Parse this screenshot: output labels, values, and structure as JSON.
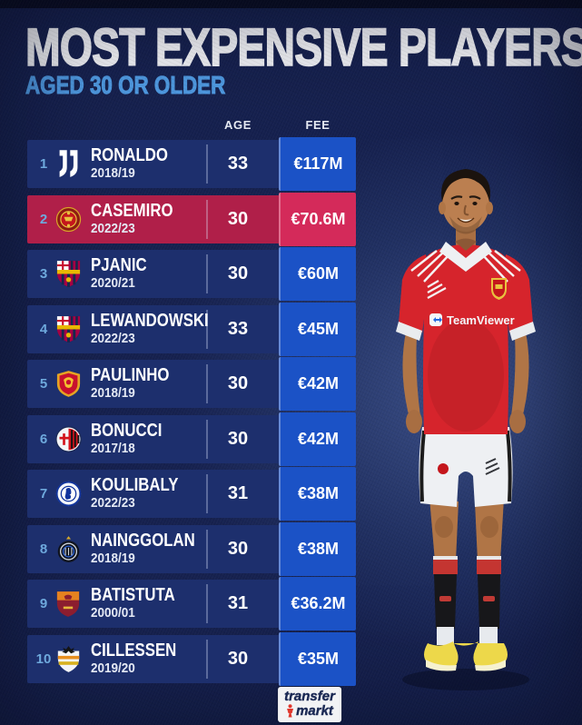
{
  "header": {
    "title": "MOST EXPENSIVE PLAYERS",
    "subtitle": "AGED 30 OR OLDER"
  },
  "table": {
    "columns": {
      "age": "AGE",
      "fee": "FEE"
    },
    "rows": [
      {
        "rank": "1",
        "club": "juventus",
        "player": "RONALDO",
        "season": "2018/19",
        "age": "33",
        "fee": "€117M",
        "highlight": false
      },
      {
        "rank": "2",
        "club": "manchester-united",
        "player": "CASEMIRO",
        "season": "2022/23",
        "age": "30",
        "fee": "€70.6M",
        "highlight": true
      },
      {
        "rank": "3",
        "club": "barcelona",
        "player": "PJANIC",
        "season": "2020/21",
        "age": "30",
        "fee": "€60M",
        "highlight": false
      },
      {
        "rank": "4",
        "club": "barcelona",
        "player": "LEWANDOWSKI",
        "season": "2022/23",
        "age": "33",
        "fee": "€45M",
        "highlight": false
      },
      {
        "rank": "5",
        "club": "guangzhou-evergrande",
        "player": "PAULINHO",
        "season": "2018/19",
        "age": "30",
        "fee": "€42M",
        "highlight": false
      },
      {
        "rank": "6",
        "club": "ac-milan",
        "player": "BONUCCI",
        "season": "2017/18",
        "age": "30",
        "fee": "€42M",
        "highlight": false
      },
      {
        "rank": "7",
        "club": "chelsea",
        "player": "KOULIBALY",
        "season": "2022/23",
        "age": "31",
        "fee": "€38M",
        "highlight": false
      },
      {
        "rank": "8",
        "club": "inter",
        "player": "NAINGGOLAN",
        "season": "2018/19",
        "age": "30",
        "fee": "€38M",
        "highlight": false
      },
      {
        "rank": "9",
        "club": "roma",
        "player": "BATISTUTA",
        "season": "2000/01",
        "age": "31",
        "fee": "€36.2M",
        "highlight": false
      },
      {
        "rank": "10",
        "club": "valencia",
        "player": "CILLESSEN",
        "season": "2019/20",
        "age": "30",
        "fee": "€35M",
        "highlight": false
      }
    ]
  },
  "player_figure": {
    "sponsor": "TeamViewer"
  },
  "footer": {
    "brand_top": "transfer",
    "brand_bottom": "markt"
  },
  "colors": {
    "background": "#16214f",
    "top_strip": "#0a0e24",
    "row_bg": "#1d2f6d",
    "row_highlight": "#b01f49",
    "fee_cell": "#1b52c6",
    "fee_cell_highlight": "#d42a5a",
    "subtitle": "#4f9be4",
    "rank": "#6ea9dd"
  },
  "chart_data": {
    "type": "table",
    "title": "MOST EXPENSIVE PLAYERS",
    "subtitle": "AGED 30 OR OLDER",
    "columns": [
      "rank",
      "club",
      "player",
      "transfer_season",
      "age",
      "fee_eur_millions"
    ],
    "rows": [
      [
        1,
        "Juventus",
        "RONALDO",
        "2018/19",
        33,
        117
      ],
      [
        2,
        "Manchester United",
        "CASEMIRO",
        "2022/23",
        30,
        70.6
      ],
      [
        3,
        "Barcelona",
        "PJANIC",
        "2020/21",
        30,
        60
      ],
      [
        4,
        "Barcelona",
        "LEWANDOWSKI",
        "2022/23",
        33,
        45
      ],
      [
        5,
        "Guangzhou Evergrande",
        "PAULINHO",
        "2018/19",
        30,
        42
      ],
      [
        6,
        "AC Milan",
        "BONUCCI",
        "2017/18",
        30,
        42
      ],
      [
        7,
        "Chelsea",
        "KOULIBALY",
        "2022/23",
        31,
        38
      ],
      [
        8,
        "Inter",
        "NAINGGOLAN",
        "2018/19",
        30,
        38
      ],
      [
        9,
        "Roma",
        "BATISTUTA",
        "2000/01",
        31,
        36.2
      ],
      [
        10,
        "Valencia",
        "CILLESSEN",
        "2019/20",
        30,
        35
      ]
    ],
    "highlighted_rank": 2,
    "legend_position": "none",
    "grid": false
  }
}
